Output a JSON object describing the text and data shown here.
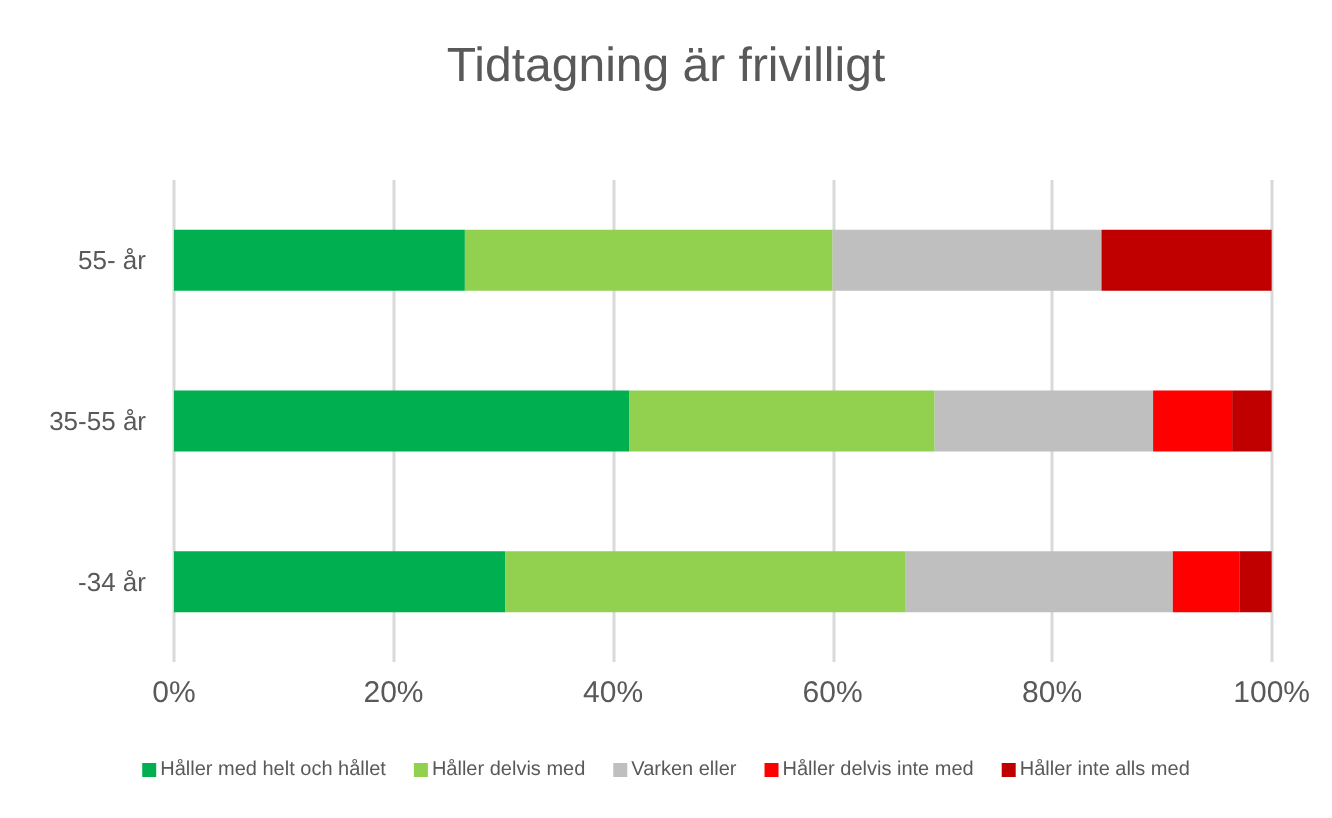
{
  "chart_data": {
    "type": "bar",
    "orientation": "horizontal",
    "stacked": true,
    "title": "Tidtagning är frivilligt",
    "categories": [
      "55- år",
      "35-55 år",
      "-34 år"
    ],
    "series": [
      {
        "name": "Håller med helt och hållet",
        "color": "#00b050",
        "values": [
          26.5,
          41.5,
          30.2
        ]
      },
      {
        "name": "Håller delvis med",
        "color": "#92d050",
        "values": [
          33.5,
          27.8,
          36.4
        ]
      },
      {
        "name": "Varken eller",
        "color": "#bfbfbf",
        "values": [
          24.5,
          19.9,
          24.4
        ]
      },
      {
        "name": "Håller delvis inte med",
        "color": "#ff0000",
        "values": [
          0,
          7.2,
          6.1
        ]
      },
      {
        "name": "Håller inte alls med",
        "color": "#c00000",
        "values": [
          15.5,
          3.6,
          2.9
        ]
      }
    ],
    "xlim": [
      0,
      100
    ],
    "xticks": [
      {
        "value": 0,
        "label": "0%"
      },
      {
        "value": 20,
        "label": "20%"
      },
      {
        "value": 40,
        "label": "40%"
      },
      {
        "value": 60,
        "label": "60%"
      },
      {
        "value": 80,
        "label": "80%"
      },
      {
        "value": 100,
        "label": "100%"
      }
    ],
    "grid": "x",
    "legend": "bottom"
  }
}
